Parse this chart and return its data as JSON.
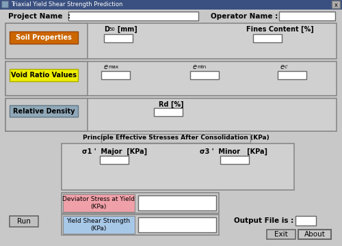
{
  "title_bar": "Triaxial Yield Shear Strength Prediction",
  "title_bar_color": "#3a5080",
  "title_bar_text_color": "white",
  "bg_color": "#c0c0c0",
  "window_bg": "#c8c8c8",
  "section_bg": "#d0d0d0",
  "field_bg": "white",
  "border_color": "#888888",
  "dark_border": "#666666",
  "project_name_label": "Project Name  :",
  "operator_name_label": "Operator Name :",
  "soil_prop_label": "Soil Properties",
  "soil_prop_color": "#cc6600",
  "soil_prop_text": "white",
  "fines_label": "Fines Content [%]",
  "void_ratio_label": "Void Ratio Values",
  "void_ratio_color": "#eeee00",
  "void_ratio_text": "black",
  "rel_density_label": "Relative Density",
  "rel_density_color": "#90a8b8",
  "rel_density_text": "black",
  "rd_label": "Rd [%]",
  "stress_title": "Principle Effective Stresses After Consolidation (KPa)",
  "sigma1_label": "σ1 '  Major  [KPa]",
  "sigma3_label": "σ3 '  Minor   [KPa]",
  "deviator_label": "Deviator Stress at Yield\n(KPa)",
  "deviator_color": "#f0a0a8",
  "yield_label": "Yield Shear Strength\n(KPa)",
  "yield_color": "#a8c8e8",
  "output_label": "Output File is :",
  "run_btn": "Run",
  "exit_btn": "Exit",
  "about_btn": "About"
}
